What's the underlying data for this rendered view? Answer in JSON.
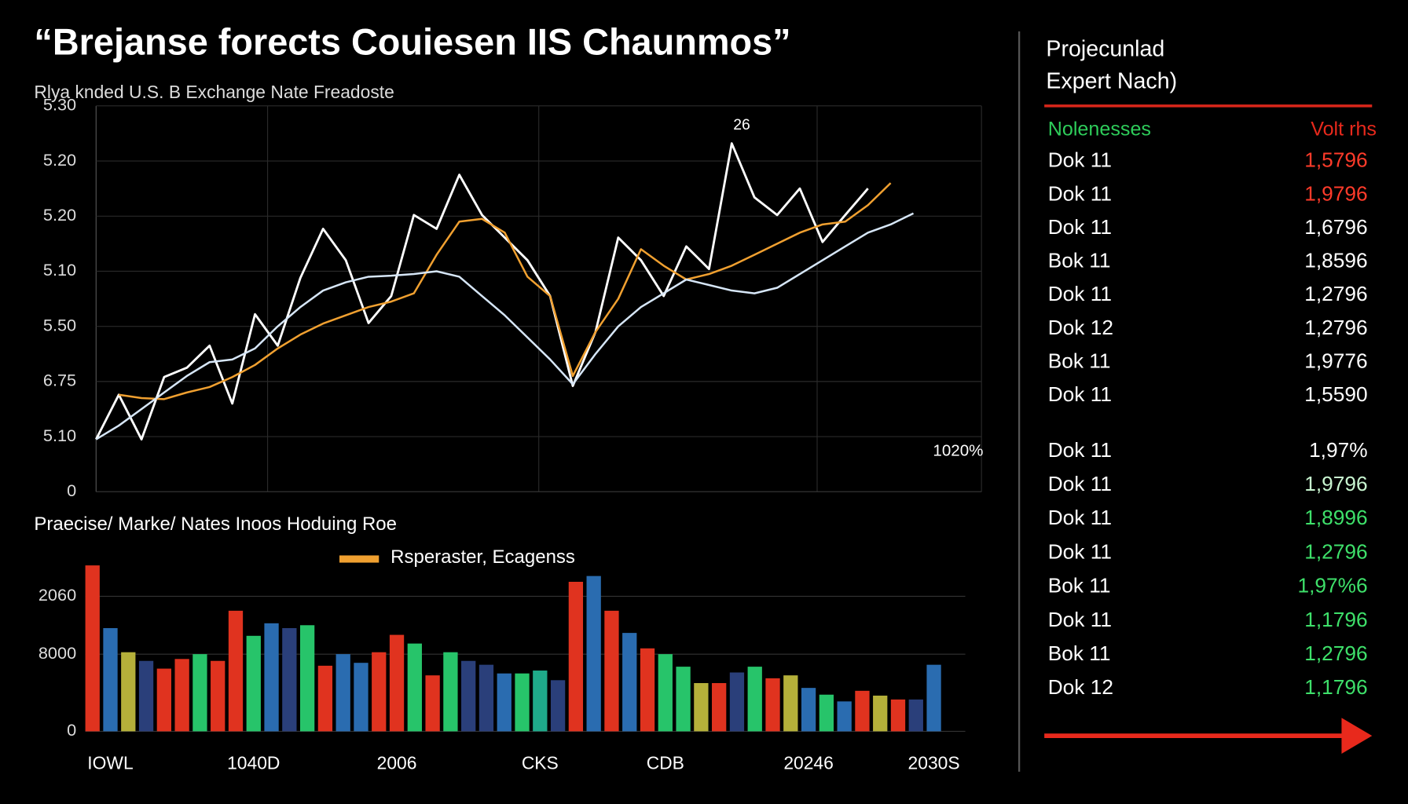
{
  "title": "“Brejanse forects Couiesen IIS Chaunmos”",
  "chart_data": [
    {
      "type": "line",
      "title": "Rlya knded U.S. B Exchange Nate Freadoste",
      "categories": [
        null,
        null,
        null,
        null,
        null,
        null,
        null,
        null,
        null,
        null,
        null,
        null,
        null,
        null,
        null,
        null,
        null,
        null,
        null,
        null,
        null,
        null,
        null,
        null,
        null,
        null,
        null,
        null,
        null,
        null,
        null,
        null,
        null,
        null,
        null,
        null,
        null,
        null,
        null,
        null
      ],
      "series": [
        {
          "color": "#ffffff",
          "values": [
            0.95,
            1.76,
            0.95,
            2.08,
            2.25,
            2.65,
            1.6,
            3.22,
            2.65,
            3.88,
            4.77,
            4.2,
            3.06,
            3.55,
            5.02,
            4.77,
            5.75,
            5.02,
            4.61,
            4.2,
            3.55,
            1.92,
            2.9,
            4.61,
            4.2,
            3.55,
            4.45,
            4.04,
            6.32,
            5.34,
            5.02,
            5.5,
            4.53,
            5.02,
            5.5,
            null,
            null,
            null,
            null,
            null
          ]
        },
        {
          "name": "Rsperaster, Ecagenss",
          "color": "#f0a030",
          "values": [
            null,
            1.76,
            1.7,
            1.68,
            1.8,
            1.9,
            2.08,
            2.3,
            2.6,
            2.85,
            3.05,
            3.2,
            3.35,
            3.45,
            3.6,
            4.3,
            4.9,
            4.95,
            4.7,
            3.9,
            3.55,
            2.1,
            2.9,
            3.5,
            4.4,
            4.1,
            3.85,
            3.95,
            4.1,
            4.3,
            4.5,
            4.7,
            4.85,
            4.9,
            5.2,
            5.6,
            null,
            null,
            null,
            null
          ]
        },
        {
          "color": "#d6e6f7",
          "values": [
            0.95,
            1.2,
            1.5,
            1.8,
            2.1,
            2.35,
            2.4,
            2.6,
            3.0,
            3.35,
            3.65,
            3.8,
            3.9,
            3.92,
            3.95,
            4.0,
            3.9,
            3.55,
            3.2,
            2.8,
            2.4,
            1.95,
            2.5,
            3.0,
            3.35,
            3.6,
            3.85,
            3.75,
            3.65,
            3.6,
            3.7,
            3.95,
            4.2,
            4.45,
            4.7,
            4.85,
            5.05,
            null,
            null,
            null
          ]
        }
      ],
      "ylim": [
        0,
        7
      ],
      "yticks": [
        0,
        {
          "value": 1,
          "label": "5.10"
        },
        {
          "value": 2,
          "label": "6.75"
        },
        {
          "value": 3,
          "label": "5.50"
        },
        {
          "value": 4,
          "label": "5.10"
        },
        {
          "value": 5,
          "label": "5.20"
        },
        {
          "value": 6,
          "label": "5.20"
        },
        {
          "value": 7,
          "label": "5.30"
        }
      ],
      "grid": true,
      "annotations": [
        "26",
        "1020%"
      ]
    },
    {
      "type": "bar",
      "title": "Praecise/ Marke/ Nates Inoos Hoduing Roe",
      "categories": [
        null,
        "IOWL",
        null,
        null,
        null,
        null,
        null,
        null,
        null,
        "1040D",
        null,
        null,
        null,
        null,
        null,
        null,
        null,
        "2006",
        null,
        null,
        null,
        null,
        null,
        null,
        null,
        "CKS",
        null,
        null,
        null,
        null,
        null,
        null,
        "CDB",
        null,
        null,
        null,
        null,
        null,
        null,
        null,
        "20246",
        null,
        null,
        null,
        null,
        null,
        null,
        "2030S"
      ],
      "values": [
        17200,
        10700,
        8200,
        7300,
        6500,
        7500,
        8000,
        7300,
        12500,
        9900,
        11200,
        10700,
        11000,
        6800,
        8000,
        7100,
        8200,
        10000,
        9100,
        5800,
        8200,
        7300,
        6900,
        6000,
        6000,
        6300,
        5300,
        15500,
        16100,
        12500,
        10200,
        8600,
        8000,
        6700,
        5000,
        5000,
        6100,
        6700,
        5500,
        5800,
        4500,
        3800,
        3100,
        4200,
        3700,
        3300,
        3300,
        6900
      ],
      "colors": [
        "#e0331f",
        "#2a6cb0",
        "#b5b03a",
        "#2a3f7a",
        "#e0331f",
        "#e0331f",
        "#27c46a",
        "#e0331f",
        "#e0331f",
        "#27c46a",
        "#2a6cb0",
        "#2a3f7a",
        "#27c46a",
        "#e0331f",
        "#2a6cb0",
        "#2a6cb0",
        "#e0331f",
        "#e0331f",
        "#27c46a",
        "#e0331f",
        "#27c46a",
        "#2a3f7a",
        "#2a3f7a",
        "#2a6cb0",
        "#27c46a",
        "#1faa8a",
        "#2a3f7a",
        "#e0331f",
        "#2a6cb0",
        "#e0331f",
        "#2a6cb0",
        "#e0331f",
        "#27c46a",
        "#27c46a",
        "#b5b03a",
        "#e0331f",
        "#2a3f7a",
        "#27c46a",
        "#e0331f",
        "#b5b03a",
        "#2a6cb0",
        "#27c46a",
        "#2a6cb0",
        "#e0331f",
        "#b5b03a",
        "#e0331f",
        "#2a3f7a",
        "#2a6cb0"
      ],
      "ylim": [
        0,
        18000
      ],
      "yticks": [
        0,
        8000,
        {
          "value": 14000,
          "label": "2060"
        }
      ],
      "grid": true
    }
  ],
  "panel": {
    "title": [
      "Projecunlad",
      "Expert Nach)"
    ],
    "columns": [
      {
        "text": "Nolenesses",
        "color": "#2ecc5a"
      },
      {
        "text": "Volt rhs",
        "color": "#e8291c"
      }
    ],
    "rows": [
      {
        "name": "Dok 11",
        "value": "1,5796",
        "color": "#ff3b2a"
      },
      {
        "name": "Dok 11",
        "value": "1,9796",
        "color": "#ff3b2a"
      },
      {
        "name": "Dok 11",
        "value": "1,6796",
        "color": "#ffffff"
      },
      {
        "name": "Bok 11",
        "value": "1,8596",
        "color": "#ffffff"
      },
      {
        "name": "Dok 11",
        "value": "1,2796",
        "color": "#ffffff"
      },
      {
        "name": "Dok 12",
        "value": "1,2796",
        "color": "#ffffff"
      },
      {
        "name": "Bok 11",
        "value": "1,9776",
        "color": "#ffffff"
      },
      {
        "name": "Dok 11",
        "value": "1,5590",
        "color": "#ffffff"
      },
      {
        "name": "Dok 11",
        "value": "1,97%",
        "color": "#ffffff"
      },
      {
        "name": "Dok 11",
        "value": "1,9796",
        "color": "#c8f5d0"
      },
      {
        "name": "Dok 11",
        "value": "1,8996",
        "color": "#3ee06a"
      },
      {
        "name": "Dok 11",
        "value": "1,2796",
        "color": "#3ee06a"
      },
      {
        "name": "Bok 11",
        "value": "1,97%6",
        "color": "#3ee06a"
      },
      {
        "name": "Dok 11",
        "value": "1,1796",
        "color": "#3ee06a"
      },
      {
        "name": "Bok 11",
        "value": "1,2796",
        "color": "#3ee06a"
      },
      {
        "name": "Dok 12",
        "value": "1,1796",
        "color": "#3ee06a"
      }
    ]
  }
}
